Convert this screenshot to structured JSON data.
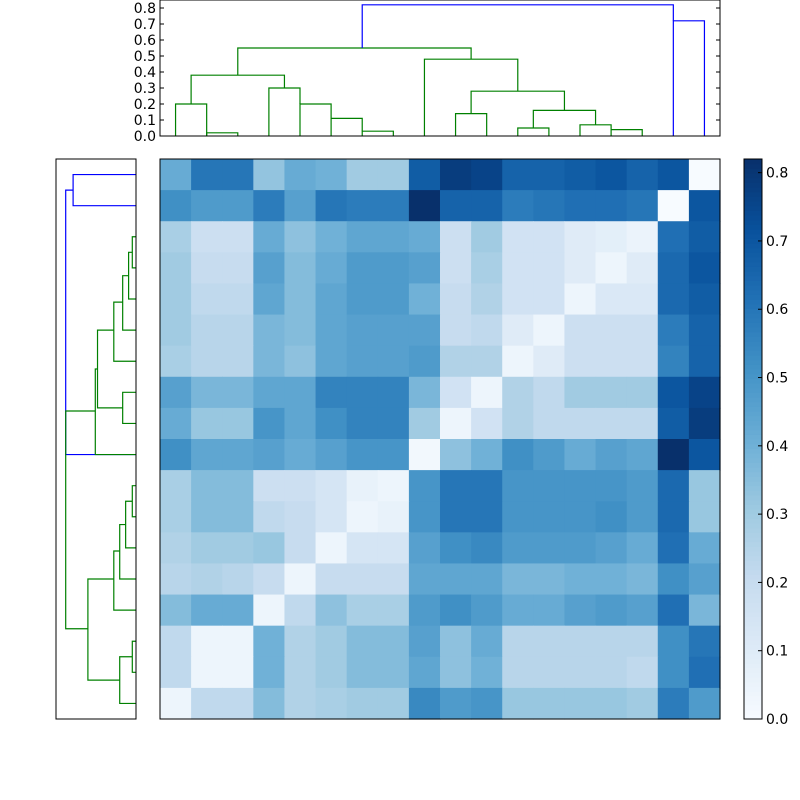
{
  "chart_data": {
    "type": "heatmap",
    "title": "",
    "xlabel": "",
    "ylabel": "",
    "matrix": [
      [
        0.42,
        0.6,
        0.6,
        0.33,
        0.42,
        0.4,
        0.3,
        0.3,
        0.68,
        0.78,
        0.76,
        0.66,
        0.66,
        0.68,
        0.7,
        0.66,
        0.7,
        0.0
      ],
      [
        0.52,
        0.48,
        0.48,
        0.58,
        0.46,
        0.6,
        0.58,
        0.58,
        0.82,
        0.66,
        0.66,
        0.58,
        0.6,
        0.62,
        0.62,
        0.6,
        0.0,
        0.7
      ],
      [
        0.28,
        0.18,
        0.18,
        0.42,
        0.34,
        0.4,
        0.44,
        0.44,
        0.42,
        0.18,
        0.3,
        0.16,
        0.16,
        0.1,
        0.08,
        0.05,
        0.62,
        0.68
      ],
      [
        0.3,
        0.2,
        0.2,
        0.46,
        0.36,
        0.42,
        0.48,
        0.48,
        0.46,
        0.18,
        0.28,
        0.16,
        0.16,
        0.1,
        0.04,
        0.1,
        0.64,
        0.7
      ],
      [
        0.3,
        0.22,
        0.22,
        0.44,
        0.36,
        0.44,
        0.48,
        0.48,
        0.4,
        0.2,
        0.26,
        0.16,
        0.16,
        0.04,
        0.12,
        0.12,
        0.64,
        0.68
      ],
      [
        0.3,
        0.24,
        0.24,
        0.38,
        0.36,
        0.44,
        0.46,
        0.46,
        0.46,
        0.2,
        0.22,
        0.1,
        0.04,
        0.18,
        0.18,
        0.18,
        0.58,
        0.66
      ],
      [
        0.28,
        0.24,
        0.24,
        0.38,
        0.34,
        0.44,
        0.46,
        0.46,
        0.48,
        0.26,
        0.26,
        0.04,
        0.1,
        0.18,
        0.18,
        0.18,
        0.56,
        0.66
      ],
      [
        0.46,
        0.38,
        0.38,
        0.44,
        0.44,
        0.56,
        0.56,
        0.56,
        0.38,
        0.16,
        0.04,
        0.26,
        0.22,
        0.3,
        0.3,
        0.3,
        0.7,
        0.76
      ],
      [
        0.42,
        0.32,
        0.32,
        0.5,
        0.44,
        0.52,
        0.56,
        0.56,
        0.3,
        0.04,
        0.16,
        0.26,
        0.22,
        0.22,
        0.22,
        0.22,
        0.68,
        0.78
      ],
      [
        0.52,
        0.44,
        0.44,
        0.46,
        0.42,
        0.46,
        0.5,
        0.5,
        0.02,
        0.34,
        0.4,
        0.52,
        0.48,
        0.42,
        0.46,
        0.44,
        0.82,
        0.7
      ],
      [
        0.28,
        0.36,
        0.36,
        0.18,
        0.18,
        0.14,
        0.06,
        0.04,
        0.5,
        0.6,
        0.6,
        0.5,
        0.5,
        0.5,
        0.5,
        0.48,
        0.64,
        0.32
      ],
      [
        0.28,
        0.36,
        0.36,
        0.22,
        0.2,
        0.14,
        0.04,
        0.06,
        0.5,
        0.6,
        0.6,
        0.5,
        0.5,
        0.5,
        0.52,
        0.48,
        0.64,
        0.32
      ],
      [
        0.26,
        0.3,
        0.3,
        0.32,
        0.2,
        0.04,
        0.14,
        0.14,
        0.46,
        0.52,
        0.54,
        0.48,
        0.48,
        0.48,
        0.46,
        0.42,
        0.62,
        0.42
      ],
      [
        0.24,
        0.26,
        0.24,
        0.2,
        0.04,
        0.2,
        0.2,
        0.2,
        0.44,
        0.44,
        0.44,
        0.38,
        0.38,
        0.4,
        0.4,
        0.38,
        0.52,
        0.46
      ],
      [
        0.36,
        0.42,
        0.42,
        0.04,
        0.22,
        0.34,
        0.28,
        0.28,
        0.48,
        0.52,
        0.48,
        0.42,
        0.42,
        0.46,
        0.48,
        0.46,
        0.62,
        0.38
      ],
      [
        0.22,
        0.04,
        0.04,
        0.4,
        0.26,
        0.3,
        0.36,
        0.36,
        0.46,
        0.34,
        0.42,
        0.24,
        0.24,
        0.24,
        0.24,
        0.24,
        0.52,
        0.6
      ],
      [
        0.22,
        0.04,
        0.04,
        0.4,
        0.26,
        0.3,
        0.36,
        0.36,
        0.44,
        0.34,
        0.4,
        0.24,
        0.24,
        0.24,
        0.24,
        0.22,
        0.52,
        0.62
      ],
      [
        0.04,
        0.22,
        0.22,
        0.36,
        0.26,
        0.28,
        0.3,
        0.3,
        0.54,
        0.48,
        0.5,
        0.32,
        0.32,
        0.32,
        0.32,
        0.3,
        0.58,
        0.48
      ]
    ],
    "colorbar": {
      "min": 0.0,
      "max": 0.82,
      "ticks": [
        "0.0",
        "0.1",
        "0.2",
        "0.3",
        "0.4",
        "0.5",
        "0.6",
        "0.7",
        "0.8"
      ]
    },
    "top_dendrogram": {
      "yticks": [
        "0.0",
        "0.1",
        "0.2",
        "0.3",
        "0.4",
        "0.5",
        "0.6",
        "0.7",
        "0.8"
      ],
      "ylim": [
        0,
        0.85
      ],
      "links": [
        {
          "a": 0.5,
          "ha": 0,
          "b": 1.5,
          "hb": 0,
          "h": 0.2,
          "color": "#008000"
        },
        {
          "a": 1.5,
          "ha": 0,
          "b": 2.5,
          "hb": 0,
          "h": 0.02,
          "color": "#008000"
        },
        {
          "a": 1.0,
          "ha": 0.2,
          "b": 4.0,
          "hb": 0.3,
          "h": 0.38,
          "color": "#008000"
        },
        {
          "a": 3.5,
          "ha": 0,
          "b": 4.5,
          "hb": 0.2,
          "h": 0.3,
          "color": "#008000"
        },
        {
          "a": 4.5,
          "ha": 0,
          "b": 5.5,
          "hb": 0.11,
          "h": 0.2,
          "color": "#008000"
        },
        {
          "a": 5.5,
          "ha": 0,
          "b": 6.5,
          "hb": 0.03,
          "h": 0.11,
          "color": "#008000"
        },
        {
          "a": 6.5,
          "ha": 0,
          "b": 7.5,
          "hb": 0,
          "h": 0.03,
          "color": "#008000"
        },
        {
          "a": 2.5,
          "ha": 0.38,
          "b": 10.0,
          "hb": 0.48,
          "h": 0.55,
          "color": "#008000"
        },
        {
          "a": 8.5,
          "ha": 0,
          "b": 11.5,
          "hb": 0.28,
          "h": 0.48,
          "color": "#008000"
        },
        {
          "a": 9.5,
          "ha": 0,
          "b": 10.5,
          "hb": 0,
          "h": 0.14,
          "color": "#008000"
        },
        {
          "a": 10.0,
          "ha": 0.14,
          "b": 13.0,
          "hb": 0.16,
          "h": 0.28,
          "color": "#008000"
        },
        {
          "a": 11.5,
          "ha": 0,
          "b": 12.5,
          "hb": 0,
          "h": 0.05,
          "color": "#008000"
        },
        {
          "a": 12.0,
          "ha": 0.05,
          "b": 14.0,
          "hb": 0.07,
          "h": 0.16,
          "color": "#008000"
        },
        {
          "a": 13.5,
          "ha": 0,
          "b": 14.5,
          "hb": 0.04,
          "h": 0.07,
          "color": "#008000"
        },
        {
          "a": 14.5,
          "ha": 0,
          "b": 15.5,
          "hb": 0,
          "h": 0.04,
          "color": "#008000"
        },
        {
          "a": 6.5,
          "ha": 0.55,
          "b": 16.5,
          "hb": 0.72,
          "h": 0.82,
          "color": "#0000ff"
        },
        {
          "a": 16.5,
          "ha": 0,
          "b": 17.5,
          "hb": 0,
          "h": 0.72,
          "color": "#0000ff"
        }
      ]
    },
    "left_dendrogram": {
      "links": [
        {
          "a": 0.5,
          "ha": 0,
          "b": 1.5,
          "hb": 0,
          "h": 0.85,
          "color": "#0000ff"
        },
        {
          "a": 1.0,
          "ha": 0.85,
          "b": 9.5,
          "hb": 0,
          "h": 0.95,
          "color": "#0000ff"
        },
        {
          "a": 2.5,
          "ha": 0,
          "b": 3.5,
          "hb": 0,
          "h": 0.05,
          "color": "#008000"
        },
        {
          "a": 3.0,
          "ha": 0.05,
          "b": 4.5,
          "hb": 0,
          "h": 0.1,
          "color": "#008000"
        },
        {
          "a": 3.75,
          "ha": 0.1,
          "b": 5.5,
          "hb": 0,
          "h": 0.18,
          "color": "#008000"
        },
        {
          "a": 4.6,
          "ha": 0.18,
          "b": 6.5,
          "hb": 0,
          "h": 0.3,
          "color": "#008000"
        },
        {
          "a": 7.5,
          "ha": 0,
          "b": 8.5,
          "hb": 0,
          "h": 0.18,
          "color": "#008000"
        },
        {
          "a": 5.5,
          "ha": 0.3,
          "b": 8.0,
          "hb": 0.18,
          "h": 0.52,
          "color": "#008000"
        },
        {
          "a": 6.75,
          "ha": 0.52,
          "b": 9.5,
          "hb": 0,
          "h": 0.55,
          "color": "#008000"
        },
        {
          "a": 10.5,
          "ha": 0,
          "b": 11.5,
          "hb": 0,
          "h": 0.05,
          "color": "#008000"
        },
        {
          "a": 11.0,
          "ha": 0.05,
          "b": 12.5,
          "hb": 0,
          "h": 0.14,
          "color": "#008000"
        },
        {
          "a": 11.75,
          "ha": 0.14,
          "b": 13.5,
          "hb": 0,
          "h": 0.22,
          "color": "#008000"
        },
        {
          "a": 12.6,
          "ha": 0.22,
          "b": 14.5,
          "hb": 0,
          "h": 0.3,
          "color": "#008000"
        },
        {
          "a": 15.5,
          "ha": 0,
          "b": 16.5,
          "hb": 0,
          "h": 0.05,
          "color": "#008000"
        },
        {
          "a": 16.0,
          "ha": 0.05,
          "b": 17.5,
          "hb": 0,
          "h": 0.22,
          "color": "#008000"
        },
        {
          "a": 13.5,
          "ha": 0.3,
          "b": 16.75,
          "hb": 0.22,
          "h": 0.65,
          "color": "#008000"
        },
        {
          "a": 8.1,
          "ha": 0.55,
          "b": 15.1,
          "hb": 0.65,
          "h": 0.95,
          "color": "#008000"
        }
      ]
    }
  }
}
